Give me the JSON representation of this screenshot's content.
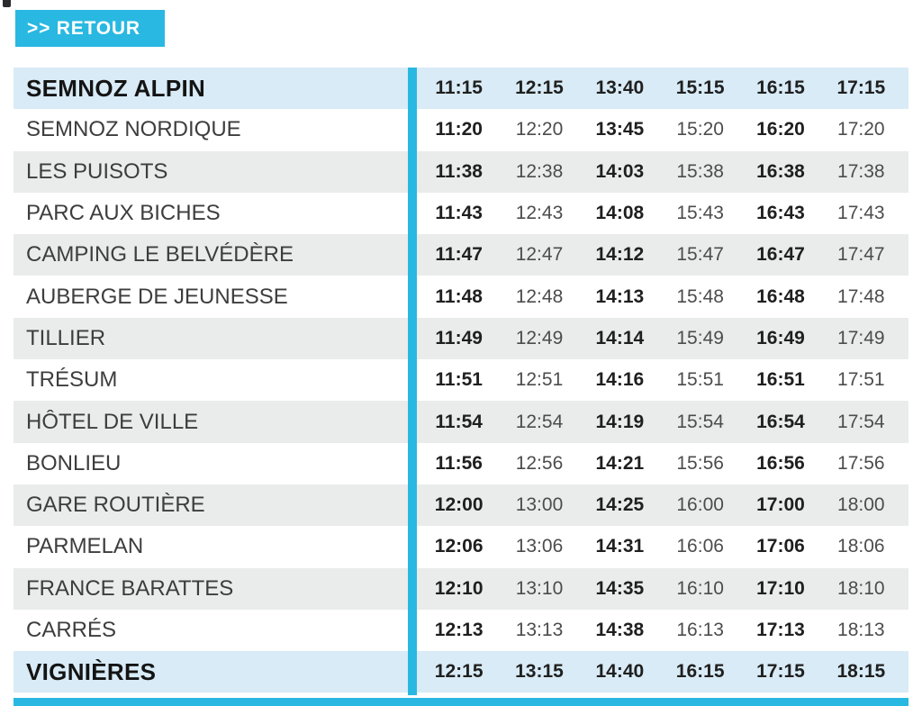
{
  "retour_button": {
    "label": ">> RETOUR"
  },
  "colors": {
    "accent_cyan": "#29b8e1",
    "terminal_row_blue": "#d8ebf6",
    "alt_row_gray": "#e9eceb",
    "bold_time_text": "#1f1f1f",
    "light_time_text": "#4c4c4c"
  },
  "timetable": {
    "rows": [
      {
        "stop": "SEMNOZ ALPIN",
        "times": [
          "11:15",
          "12:15",
          "13:40",
          "15:15",
          "16:15",
          "17:15"
        ]
      },
      {
        "stop": "SEMNOZ NORDIQUE",
        "times": [
          "11:20",
          "12:20",
          "13:45",
          "15:20",
          "16:20",
          "17:20"
        ]
      },
      {
        "stop": "LES PUISOTS",
        "times": [
          "11:38",
          "12:38",
          "14:03",
          "15:38",
          "16:38",
          "17:38"
        ]
      },
      {
        "stop": "PARC AUX BICHES",
        "times": [
          "11:43",
          "12:43",
          "14:08",
          "15:43",
          "16:43",
          "17:43"
        ]
      },
      {
        "stop": "CAMPING LE BELVÉDÈRE",
        "times": [
          "11:47",
          "12:47",
          "14:12",
          "15:47",
          "16:47",
          "17:47"
        ]
      },
      {
        "stop": "AUBERGE DE JEUNESSE",
        "times": [
          "11:48",
          "12:48",
          "14:13",
          "15:48",
          "16:48",
          "17:48"
        ]
      },
      {
        "stop": "TILLIER",
        "times": [
          "11:49",
          "12:49",
          "14:14",
          "15:49",
          "16:49",
          "17:49"
        ]
      },
      {
        "stop": "TRÉSUM",
        "times": [
          "11:51",
          "12:51",
          "14:16",
          "15:51",
          "16:51",
          "17:51"
        ]
      },
      {
        "stop": "HÔTEL DE VILLE",
        "times": [
          "11:54",
          "12:54",
          "14:19",
          "15:54",
          "16:54",
          "17:54"
        ]
      },
      {
        "stop": "BONLIEU",
        "times": [
          "11:56",
          "12:56",
          "14:21",
          "15:56",
          "16:56",
          "17:56"
        ]
      },
      {
        "stop": "GARE ROUTIÈRE",
        "times": [
          "12:00",
          "13:00",
          "14:25",
          "16:00",
          "17:00",
          "18:00"
        ]
      },
      {
        "stop": "PARMELAN",
        "times": [
          "12:06",
          "13:06",
          "14:31",
          "16:06",
          "17:06",
          "18:06"
        ]
      },
      {
        "stop": "FRANCE BARATTES",
        "times": [
          "12:10",
          "13:10",
          "14:35",
          "16:10",
          "17:10",
          "18:10"
        ]
      },
      {
        "stop": "CARRÉS",
        "times": [
          "12:13",
          "13:13",
          "14:38",
          "16:13",
          "17:13",
          "18:13"
        ]
      },
      {
        "stop": "VIGNIÈRES",
        "times": [
          "12:15",
          "13:15",
          "14:40",
          "16:15",
          "17:15",
          "18:15"
        ]
      }
    ]
  }
}
